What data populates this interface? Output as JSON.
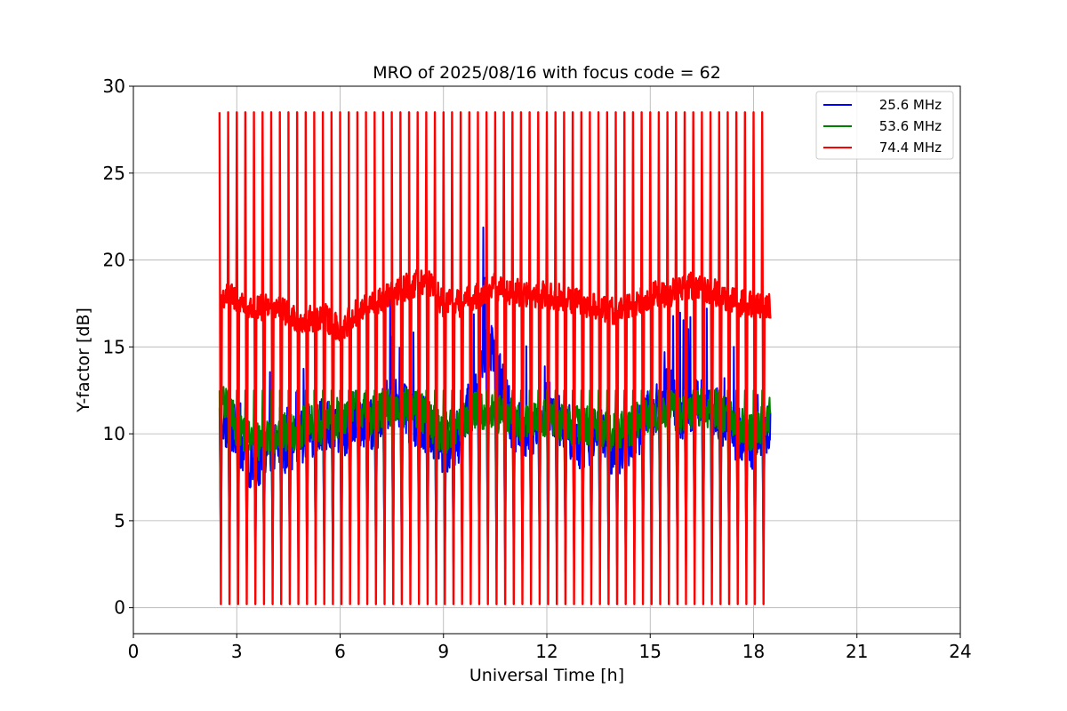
{
  "chart_data": {
    "type": "line",
    "title": "MRO of 2025/08/16 with focus code = 62",
    "xlabel": "Universal Time [h]",
    "ylabel": "Y-factor [dB]",
    "xlim": [
      0,
      24
    ],
    "ylim": [
      -1.5,
      30
    ],
    "xticks": [
      "0",
      "3",
      "6",
      "9",
      "12",
      "15",
      "18",
      "21",
      "24"
    ],
    "yticks": [
      "0",
      "5",
      "10",
      "15",
      "20",
      "25",
      "30"
    ],
    "grid": true,
    "legend_position": "top-right",
    "calibration_pulses": {
      "description_values": "spikes every ~0.25 h from ~2.5 h to ~18.3 h",
      "start_h": 2.5,
      "end_h": 18.3,
      "period_h": 0.25,
      "peak_db": 28.5,
      "trough_db": 0.2
    },
    "series": [
      {
        "name": "25.6 MHz",
        "color": "#0000ff",
        "x": [
          2.5,
          3.0,
          3.5,
          4.0,
          4.5,
          5.0,
          5.5,
          6.0,
          6.5,
          7.0,
          7.5,
          8.0,
          8.5,
          9.0,
          9.5,
          10.0,
          10.3,
          10.5,
          11.0,
          11.5,
          12.0,
          12.5,
          13.0,
          13.5,
          14.0,
          14.5,
          15.0,
          15.5,
          16.0,
          16.5,
          17.0,
          17.5,
          18.0,
          18.5
        ],
        "y": [
          11.0,
          10.0,
          8.0,
          9.5,
          9.0,
          10.0,
          10.5,
          10.0,
          11.0,
          10.5,
          12.0,
          11.0,
          10.5,
          9.0,
          10.0,
          13.0,
          16.0,
          14.0,
          10.5,
          10.0,
          12.0,
          10.5,
          9.5,
          10.0,
          9.0,
          10.0,
          11.0,
          12.5,
          11.0,
          12.0,
          11.0,
          10.0,
          9.5,
          10.5
        ]
      },
      {
        "name": "53.6 MHz",
        "color": "#008000",
        "x": [
          2.5,
          3.0,
          3.5,
          4.0,
          4.5,
          5.0,
          5.5,
          6.0,
          6.5,
          7.0,
          7.5,
          8.0,
          8.5,
          9.0,
          9.5,
          10.0,
          10.5,
          11.0,
          11.5,
          12.0,
          12.5,
          13.0,
          13.5,
          14.0,
          14.5,
          15.0,
          15.5,
          16.0,
          16.5,
          17.0,
          17.5,
          18.0,
          18.5
        ],
        "y": [
          12.0,
          10.5,
          9.5,
          10.0,
          10.0,
          10.5,
          10.5,
          11.0,
          11.5,
          11.0,
          11.5,
          11.5,
          11.0,
          10.0,
          10.5,
          11.5,
          11.0,
          11.0,
          10.5,
          11.0,
          10.5,
          10.5,
          10.5,
          10.0,
          10.5,
          11.0,
          11.5,
          11.0,
          11.5,
          11.5,
          10.5,
          10.0,
          11.0
        ]
      },
      {
        "name": "74.4 MHz",
        "color": "#ff0000",
        "x": [
          2.5,
          3.0,
          3.5,
          4.0,
          4.5,
          5.0,
          5.5,
          6.0,
          6.5,
          7.0,
          7.5,
          8.0,
          8.5,
          9.0,
          9.5,
          10.0,
          10.5,
          11.0,
          11.5,
          12.0,
          12.5,
          13.0,
          13.5,
          14.0,
          14.5,
          15.0,
          15.5,
          16.0,
          16.5,
          17.0,
          17.5,
          18.0,
          18.5
        ],
        "y": [
          18.0,
          17.8,
          17.0,
          17.5,
          16.8,
          16.5,
          16.8,
          16.0,
          17.0,
          17.5,
          18.0,
          18.5,
          18.8,
          17.5,
          17.5,
          18.0,
          18.5,
          18.2,
          18.0,
          18.0,
          17.8,
          17.5,
          17.2,
          17.0,
          17.5,
          18.0,
          18.0,
          18.5,
          18.5,
          18.0,
          17.5,
          17.5,
          17.3
        ]
      }
    ]
  }
}
